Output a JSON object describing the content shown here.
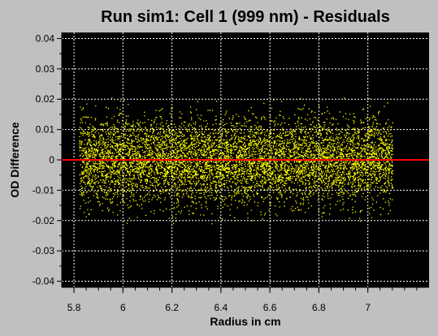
{
  "chart_data": {
    "type": "scatter",
    "title": "Run sim1: Cell 1 (999 nm) - Residuals",
    "xlabel": "Radius in cm",
    "ylabel": "OD Difference",
    "xlim": [
      5.75,
      7.25
    ],
    "ylim": [
      -0.042,
      0.042
    ],
    "x_ticks": [
      {
        "value": 5.8,
        "label": "5.8"
      },
      {
        "value": 6.0,
        "label": "6"
      },
      {
        "value": 6.2,
        "label": "6.2"
      },
      {
        "value": 6.4,
        "label": "6.4"
      },
      {
        "value": 6.6,
        "label": "6.6"
      },
      {
        "value": 6.8,
        "label": "6.8"
      },
      {
        "value": 7.0,
        "label": "7"
      }
    ],
    "y_ticks": [
      {
        "value": 0.04,
        "label": "0.04"
      },
      {
        "value": 0.03,
        "label": "0.03"
      },
      {
        "value": 0.02,
        "label": "0.02"
      },
      {
        "value": 0.01,
        "label": "0.01"
      },
      {
        "value": 0.0,
        "label": "0"
      },
      {
        "value": -0.01,
        "label": "-0.01"
      },
      {
        "value": -0.02,
        "label": "-0.02"
      },
      {
        "value": -0.03,
        "label": "-0.03"
      },
      {
        "value": -0.04,
        "label": "-0.04"
      }
    ],
    "grid": true,
    "plot_background": "#000000",
    "residual_color": "#ffff00",
    "zero_line_color": "#ff0000",
    "zero_line": 0,
    "residual_x_range": [
      5.82,
      7.1
    ],
    "residual_y_range": [
      -0.021,
      0.021
    ],
    "residual_spread_sd": 0.007
  }
}
